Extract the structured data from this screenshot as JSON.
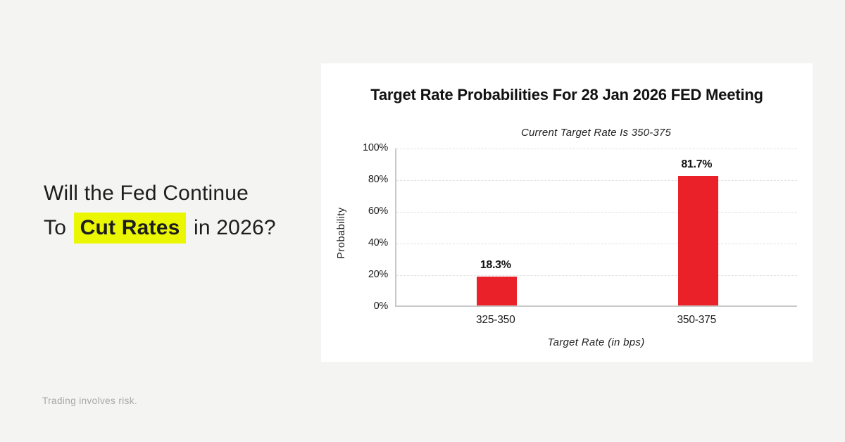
{
  "page": {
    "background": "#f4f4f2",
    "headline": {
      "line1": "Will the Fed Continue",
      "line2_prefix": "To",
      "highlight": "Cut Rates",
      "line2_suffix": "in 2026?",
      "text_color": "#1d1d1f",
      "highlight_color": "#ebf702"
    },
    "disclaimer": "Trading involves risk."
  },
  "chart_data": {
    "type": "bar",
    "title": "Target Rate Probabilities For 28 Jan 2026 FED Meeting",
    "subtitle": "Current Target Rate Is 350-375",
    "categories": [
      "325-350",
      "350-375"
    ],
    "values": [
      18.3,
      81.7
    ],
    "value_labels": [
      "18.3%",
      "81.7%"
    ],
    "xlabel": "Target Rate (in bps)",
    "ylabel": "Probability",
    "ylim": [
      0,
      100
    ],
    "yticks": [
      0,
      20,
      40,
      60,
      80,
      100
    ],
    "ytick_suffix": "%",
    "grid": "horizontal-dashed",
    "legend": "none",
    "bar_color": "#ea2128",
    "axis_color": "#c9c9c9",
    "gridline_color": "#e1e1e1"
  }
}
